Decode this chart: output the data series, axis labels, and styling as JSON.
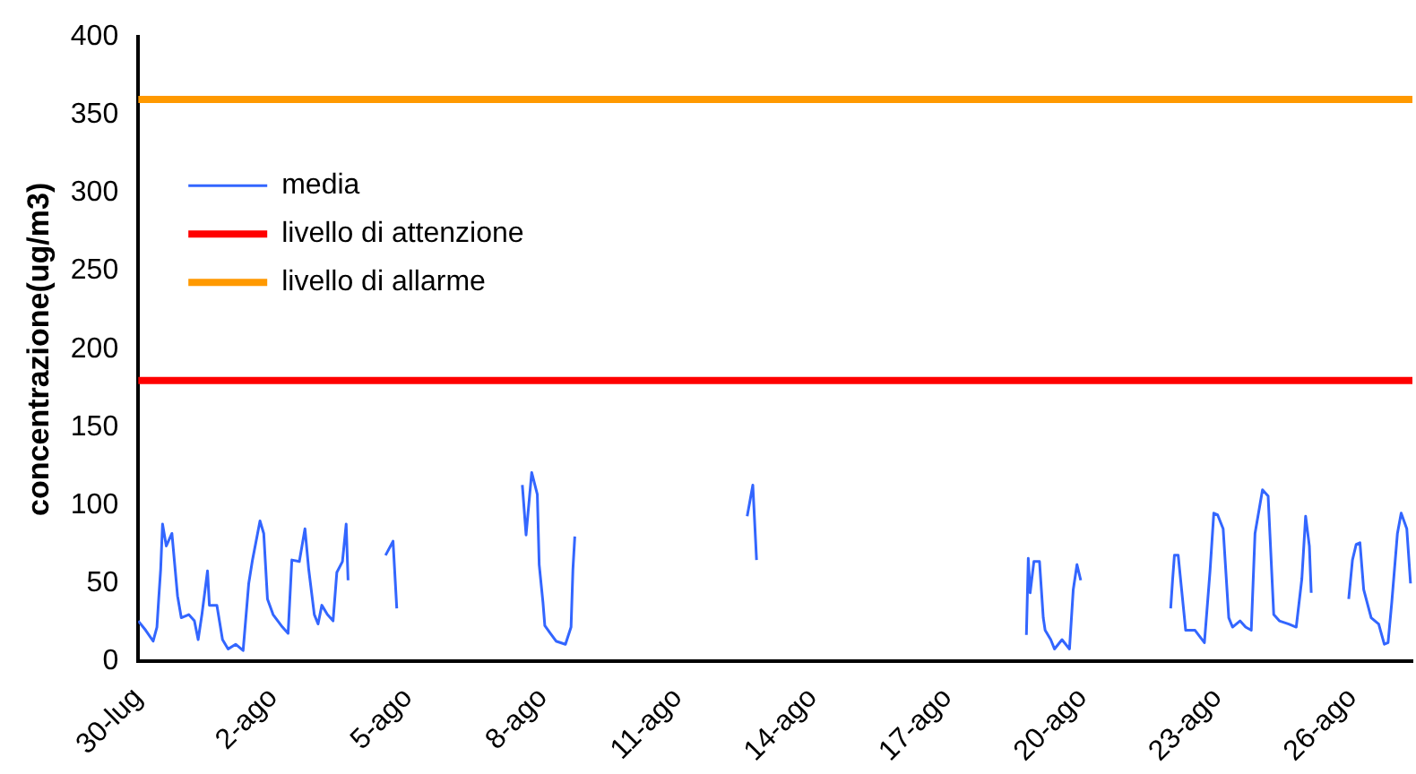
{
  "chart_data": {
    "type": "line",
    "ylabel": "concentrazione(ug/m3)",
    "xlim": [
      "--07-30",
      "--08-27T08:00"
    ],
    "xticks": [
      {
        "value": "--07-30",
        "label": "30-lug"
      },
      {
        "value": "--08-02",
        "label": "2-ago"
      },
      {
        "value": "--08-05",
        "label": "5-ago"
      },
      {
        "value": "--08-08",
        "label": "8-ago"
      },
      {
        "value": "--08-11",
        "label": "11-ago"
      },
      {
        "value": "--08-14",
        "label": "14-ago"
      },
      {
        "value": "--08-17",
        "label": "17-ago"
      },
      {
        "value": "--08-20",
        "label": "20-ago"
      },
      {
        "value": "--08-23",
        "label": "23-ago"
      },
      {
        "value": "--08-26",
        "label": "26-ago"
      }
    ],
    "ylim": [
      0,
      400
    ],
    "yticks": [
      0,
      50,
      100,
      150,
      200,
      250,
      300,
      350,
      400
    ],
    "grid": false,
    "legend": "top left",
    "marker": "none",
    "line_style": "solid",
    "series": [
      {
        "name": "media",
        "color": "#3366ff",
        "x": [
          "--07-30T00:00",
          "--07-30T04:00",
          "--07-30T08:00",
          "--07-30T10:00",
          "--07-30T11:00",
          "--07-30T12:00",
          "--07-30T13:00",
          "--07-30T15:00",
          "--07-30T18:00",
          "--07-30T21:00",
          "--07-30T23:00",
          "--07-31T03:00",
          "--07-31T06:00",
          "--07-31T08:00",
          "--07-31T10:00",
          "--07-31T13:00",
          "--07-31T14:00",
          "--07-31T18:00",
          "--07-31T21:00",
          "--08-01T00:00",
          "--08-01T04:00",
          "--08-01T08:00",
          "--08-01T11:00",
          "--08-01T13:00",
          "--08-01T17:00",
          "--08-01T19:00",
          "--08-01T21:00",
          "--08-02T00:00",
          "--08-02T05:00",
          "--08-02T08:00",
          "--08-02T10:00",
          "--08-02T14:00",
          "--08-02T17:00",
          "--08-02T19:00",
          "--08-02T22:00",
          "--08-03T00:00",
          "--08-03T02:00",
          "--08-03T05:00",
          "--08-03T08:00",
          "--08-03T10:00",
          "--08-03T13:00",
          "--08-03T15:00",
          "--08-03T16:00",
          "--08-03T17:00",
          "--08-04T12:00",
          "--08-04T16:00",
          "--08-04T18:00",
          "--08-04T19:00",
          "--08-07T13:00",
          "--08-07T15:00",
          "--08-07T18:00",
          "--08-07T21:00",
          "--08-07T22:00",
          "--08-08T00:00",
          "--08-08T01:00",
          "--08-08T04:00",
          "--08-08T07:00",
          "--08-08T12:00",
          "--08-08T15:00",
          "--08-08T16:00",
          "--08-08T17:00",
          "--08-08T18:00",
          "--08-12T13:00",
          "--08-12T16:00",
          "--08-12T18:00",
          "--08-12T19:00",
          "--08-18T18:00",
          "--08-18T19:00",
          "--08-18T20:00",
          "--08-18T22:00",
          "--08-19T01:00",
          "--08-19T03:00",
          "--08-19T04:00",
          "--08-19T07:00",
          "--08-19T09:00",
          "--08-19T13:00",
          "--08-19T17:00",
          "--08-19T19:00",
          "--08-19T21:00",
          "--08-19T23:00",
          "--08-20T00:00",
          "--08-21T23:00",
          "--08-22T00:00",
          "--08-22T01:00",
          "--08-22T03:00",
          "--08-22T06:00",
          "--08-22T07:00",
          "--08-22T12:00",
          "--08-22T17:00",
          "--08-22T20:00",
          "--08-22T22:00",
          "--08-23T00:00",
          "--08-23T03:00",
          "--08-23T06:00",
          "--08-23T08:00",
          "--08-23T12:00",
          "--08-23T15:00",
          "--08-23T18:00",
          "--08-23T20:00",
          "--08-24T00:00",
          "--08-24T03:00",
          "--08-24T06:00",
          "--08-24T09:00",
          "--08-24T14:00",
          "--08-24T18:00",
          "--08-24T21:00",
          "--08-24T23:00",
          "--08-25T01:00",
          "--08-25T02:00",
          "--08-25T03:00",
          "--08-25T22:00",
          "--08-26T00:00",
          "--08-26T02:00",
          "--08-26T04:00",
          "--08-26T06:00",
          "--08-26T10:00",
          "--08-26T14:00",
          "--08-26T17:00",
          "--08-26T19:00",
          "--08-26T21:00",
          "--08-27T00:00",
          "--08-27T02:00",
          "--08-27T05:00",
          "--08-27T07:00"
        ],
        "values": [
          26,
          20,
          13,
          22,
          41,
          59,
          88,
          74,
          82,
          42,
          28,
          30,
          26,
          14,
          30,
          58,
          36,
          36,
          14,
          8,
          11,
          7,
          50,
          65,
          90,
          82,
          40,
          30,
          22,
          18,
          65,
          64,
          85,
          59,
          30,
          24,
          36,
          30,
          26,
          57,
          64,
          88,
          52,
          null,
          68,
          77,
          34,
          null,
          113,
          81,
          121,
          107,
          62,
          38,
          23,
          18,
          13,
          11,
          22,
          59,
          80,
          null,
          93,
          113,
          65,
          null,
          17,
          66,
          44,
          64,
          64,
          28,
          20,
          14,
          8,
          14,
          8,
          46,
          62,
          52,
          null,
          34,
          52,
          68,
          68,
          32,
          20,
          20,
          12,
          58,
          95,
          94,
          85,
          28,
          22,
          26,
          22,
          20,
          82,
          110,
          106,
          30,
          26,
          24,
          22,
          53,
          93,
          74,
          44,
          null,
          40,
          65,
          75,
          76,
          46,
          28,
          24,
          11,
          12,
          38,
          82,
          95,
          85,
          50
        ]
      }
    ],
    "ref_lines": [
      {
        "axis": "y",
        "value": 180,
        "label": "livello di attenzione",
        "color": "#ff0000"
      },
      {
        "axis": "y",
        "value": 360,
        "label": "livello di allarme",
        "color": "#ff9900"
      }
    ]
  }
}
